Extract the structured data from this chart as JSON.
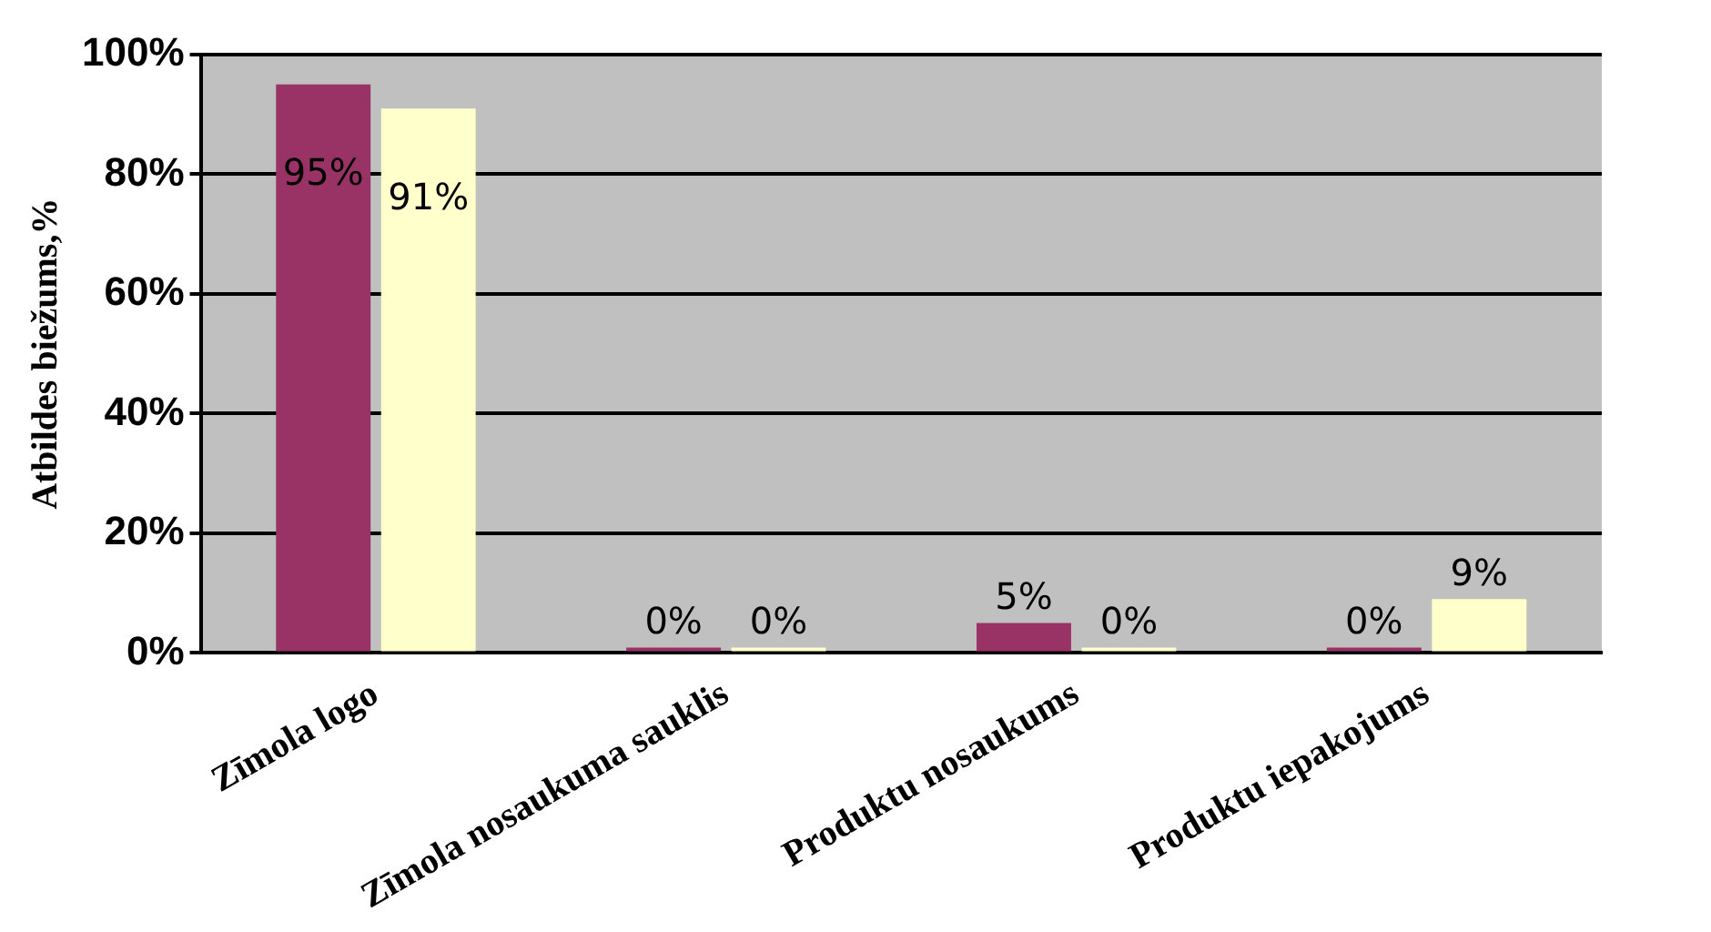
{
  "chart_data": {
    "type": "bar",
    "ylabel": "Atbildes biežums,%",
    "categories": [
      "Zīmola logo",
      "Zīmola nosaukuma sauklis",
      "Produktu nosaukums",
      "Produktu iepakojums"
    ],
    "series": [
      {
        "color": "#993366",
        "values": [
          95,
          0,
          5,
          0
        ],
        "value_labels": [
          "95%",
          "0%",
          "5%",
          "0%"
        ]
      },
      {
        "color": "#ffffcc",
        "values": [
          91,
          0,
          0,
          9
        ],
        "value_labels": [
          "91%",
          "0%",
          "0%",
          "9%"
        ]
      }
    ],
    "ylim": [
      0,
      100
    ],
    "yticks": [
      {
        "value": 0,
        "label": "0%"
      },
      {
        "value": 20,
        "label": "20%"
      },
      {
        "value": 40,
        "label": "40%"
      },
      {
        "value": 60,
        "label": "60%"
      },
      {
        "value": 80,
        "label": "80%"
      },
      {
        "value": 100,
        "label": "100%"
      }
    ],
    "grid": "y",
    "legend": false
  }
}
